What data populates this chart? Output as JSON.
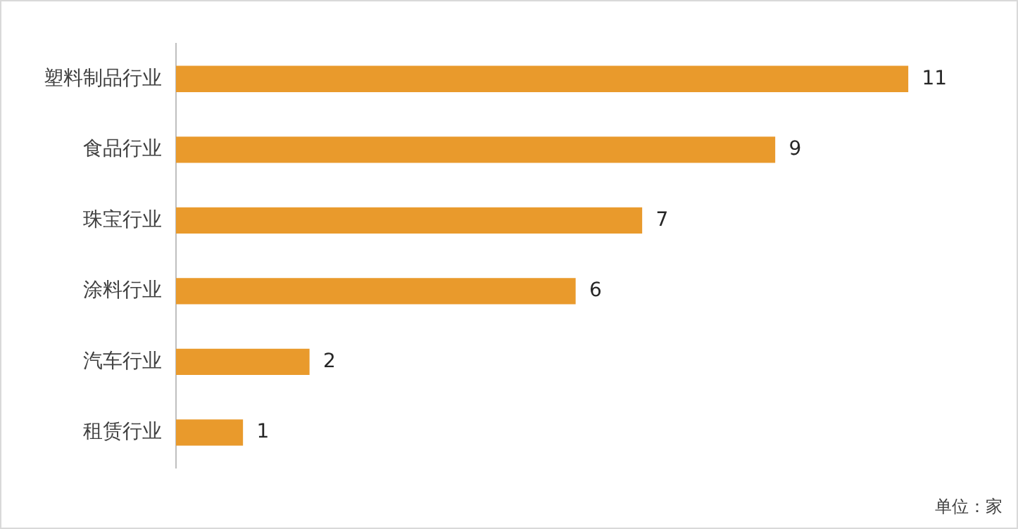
{
  "chart_data": {
    "type": "bar",
    "orientation": "horizontal",
    "categories": [
      "塑料制品行业",
      "食品行业",
      "珠宝行业",
      "涂料行业",
      "汽车行业",
      "租赁行业"
    ],
    "values": [
      11,
      9,
      7,
      6,
      2,
      1
    ],
    "color": "#e99a2c",
    "data_labels": true,
    "legend": false,
    "annotations": [
      "单位：家"
    ]
  }
}
